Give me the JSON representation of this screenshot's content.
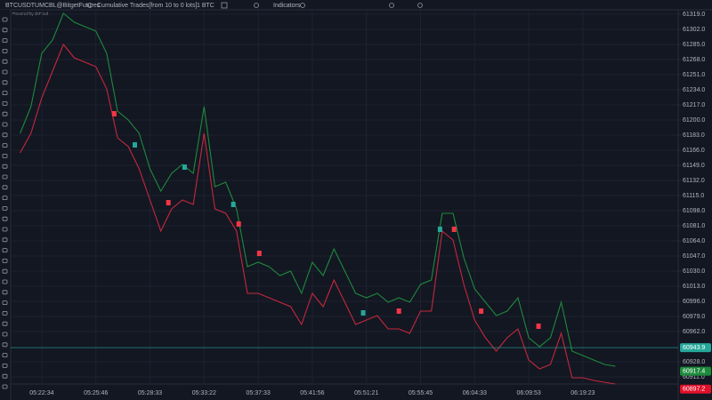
{
  "toolbar": {
    "symbol": "BTCUSDTUMCBL@BitgetFutures",
    "indicator": "Cumulative Trades[from 10 to 0 lots]",
    "lot": "1 BTC",
    "indicators": "Indicators",
    "powered": "Powered by dxFeed"
  },
  "chart_data": {
    "type": "line",
    "series": [
      {
        "color": "#1e8a3c",
        "values": [
          61185,
          61215,
          61275,
          61290,
          61320,
          61310,
          61305,
          61300,
          61275,
          61210,
          61200,
          61185,
          61145,
          61120,
          61140,
          61150,
          61140,
          61215,
          61125,
          61130,
          61100,
          61035,
          61040,
          61035,
          61025,
          61030,
          61005,
          61040,
          61025,
          61055,
          61030,
          61005,
          61000,
          61005,
          60995,
          61000,
          60995,
          61015,
          61020,
          61095,
          61095,
          61045,
          61010,
          60995,
          60980,
          60985,
          61000,
          60955,
          60945,
          60955,
          60995,
          60940,
          60935,
          60930,
          60925,
          60923
        ]
      },
      {
        "color": "#c4283c",
        "values": [
          61163,
          61185,
          61225,
          61255,
          61285,
          61270,
          61265,
          61260,
          61235,
          61180,
          61170,
          61145,
          61110,
          61075,
          61100,
          61110,
          61105,
          61185,
          61100,
          61095,
          61075,
          61005,
          61005,
          61000,
          60995,
          60990,
          60970,
          61005,
          60990,
          61020,
          60995,
          60970,
          60975,
          60980,
          60965,
          60965,
          60960,
          60985,
          60985,
          61075,
          61065,
          61015,
          60975,
          60955,
          60940,
          60955,
          60965,
          60930,
          60920,
          60925,
          60960,
          60910,
          60910,
          60907,
          60905,
          60903
        ]
      }
    ],
    "trade_markers": {
      "x": [
        8.7,
        10.6,
        15.2,
        13.7,
        19.7,
        20.2,
        22.1,
        31.7,
        35.0,
        38.8,
        40.1,
        42.6,
        47.9
      ],
      "values": [
        61207,
        61172,
        61147,
        61107,
        61105,
        61083,
        61050,
        60983,
        60985,
        61077,
        61077,
        60985,
        60968
      ],
      "colors": [
        "#f23645",
        "#26a69a",
        "#26a69a",
        "#f23645",
        "#26a69a",
        "#f23645",
        "#f23645",
        "#26a69a",
        "#f23645",
        "#26a69a",
        "#f23645",
        "#f23645",
        "#f23645"
      ]
    },
    "ylim": [
      60903,
      61327
    ],
    "yticks": [
      {
        "value": 61319,
        "label": "61319.0"
      },
      {
        "value": 61302,
        "label": "61302.0"
      },
      {
        "value": 61285,
        "label": "61285.0"
      },
      {
        "value": 61268,
        "label": "61268.0"
      },
      {
        "value": 61251,
        "label": "61251.0"
      },
      {
        "value": 61234,
        "label": "61234.0"
      },
      {
        "value": 61217,
        "label": "61217.0"
      },
      {
        "value": 61200,
        "label": "61200.0"
      },
      {
        "value": 61183,
        "label": "61183.0"
      },
      {
        "value": 61166,
        "label": "61166.0"
      },
      {
        "value": 61149,
        "label": "61149.0"
      },
      {
        "value": 61132,
        "label": "61132.0"
      },
      {
        "value": 61115,
        "label": "61115.0"
      },
      {
        "value": 61098,
        "label": "61098.0"
      },
      {
        "value": 61081,
        "label": "61081.0"
      },
      {
        "value": 61064,
        "label": "61064.0"
      },
      {
        "value": 61047,
        "label": "61047.0"
      },
      {
        "value": 61030,
        "label": "61030.0"
      },
      {
        "value": 61013,
        "label": "61013.0"
      },
      {
        "value": 60996,
        "label": "60996.0"
      },
      {
        "value": 60979,
        "label": "60979.0"
      },
      {
        "value": 60962,
        "label": "60962.0"
      },
      {
        "value": 60928,
        "label": "60928.0"
      },
      {
        "value": 60911,
        "label": "60911.0"
      }
    ],
    "xticks": [
      {
        "value": 2,
        "label": "05:22:34"
      },
      {
        "value": 7,
        "label": "05:25:46"
      },
      {
        "value": 12,
        "label": "05:28:33"
      },
      {
        "value": 17,
        "label": "05:33:22"
      },
      {
        "value": 22,
        "label": "05:37:33"
      },
      {
        "value": 27,
        "label": "05:41:56"
      },
      {
        "value": 32,
        "label": "05:51:21"
      },
      {
        "value": 37,
        "label": "05:55:45"
      },
      {
        "value": 42,
        "label": "06:04:33"
      },
      {
        "value": 47,
        "label": "06:09:53"
      },
      {
        "value": 52,
        "label": "06:19:23"
      }
    ],
    "price_labels": [
      {
        "value": 60943.9,
        "color": "#26a69a"
      },
      {
        "value": 60917.4,
        "color": "#1e8a3c"
      },
      {
        "value": 60897.2,
        "color": "#e0102a"
      }
    ],
    "grid": true
  }
}
